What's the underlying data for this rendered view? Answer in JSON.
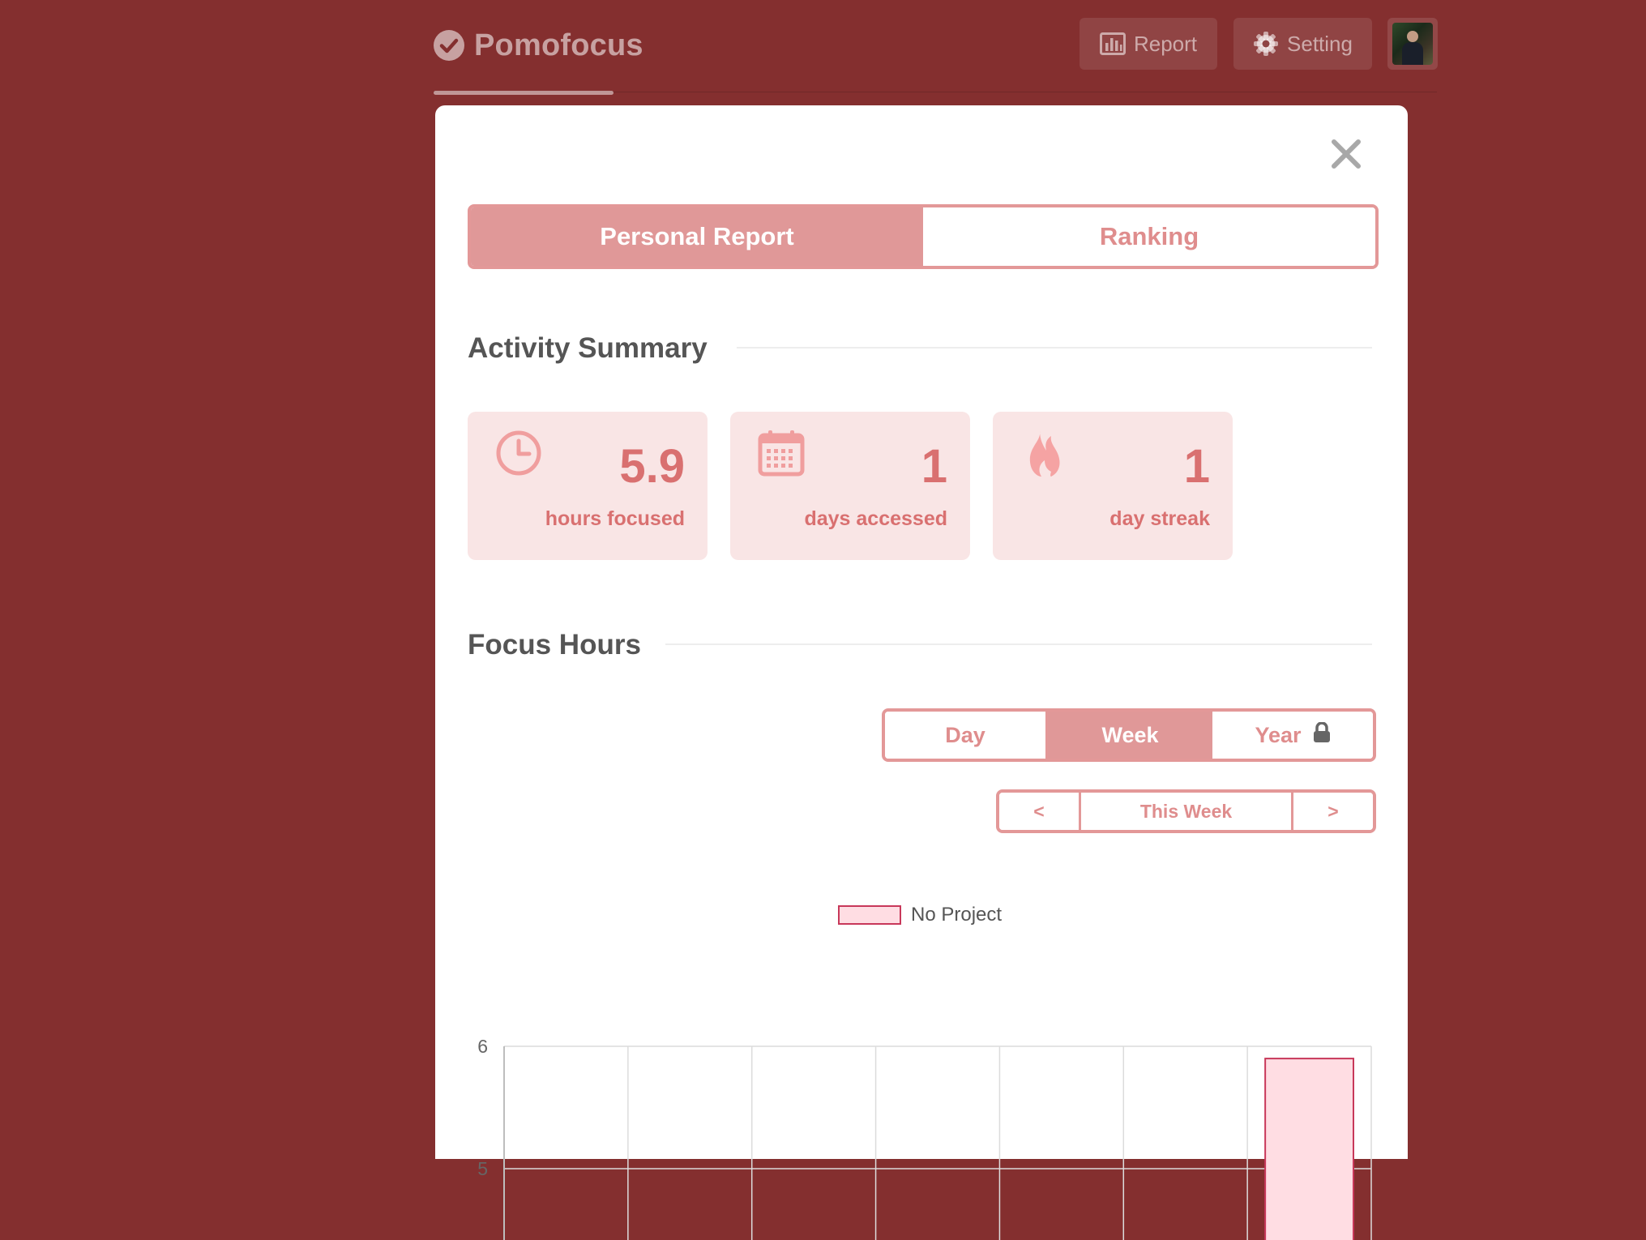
{
  "header": {
    "app_name": "Pomofocus",
    "report_label": "Report",
    "setting_label": "Setting"
  },
  "modal": {
    "tabs": [
      {
        "label": "Personal Report",
        "active": true
      },
      {
        "label": "Ranking",
        "active": false
      }
    ],
    "activity_summary": {
      "title": "Activity Summary",
      "stats": [
        {
          "icon": "clock-icon",
          "value": "5.9",
          "label": "hours focused"
        },
        {
          "icon": "calendar-icon",
          "value": "1",
          "label": "days accessed"
        },
        {
          "icon": "flame-icon",
          "value": "1",
          "label": "day streak"
        }
      ]
    },
    "focus_hours": {
      "title": "Focus Hours",
      "range_options": [
        {
          "label": "Day",
          "active": false
        },
        {
          "label": "Week",
          "active": true
        },
        {
          "label": "Year",
          "active": false,
          "locked": true
        }
      ],
      "nav": {
        "prev": "<",
        "current": "This Week",
        "next": ">"
      }
    }
  },
  "colors": {
    "background": "#842f2f",
    "accent": "#e09898",
    "accent_text": "#d97070",
    "card_bg": "#f9e5e5",
    "bar_fill": "#ffdde3",
    "bar_border": "#c8385a"
  },
  "chart_data": {
    "type": "bar",
    "categories": [
      "",
      "",
      "",
      "",
      "",
      "",
      ""
    ],
    "series": [
      {
        "name": "No Project",
        "values": [
          0,
          0,
          0,
          0,
          0,
          0,
          5.9
        ]
      }
    ],
    "y_ticks": [
      "6",
      "5"
    ],
    "ylim": [
      0,
      6
    ],
    "legend_position": "top-center",
    "grid": true
  }
}
